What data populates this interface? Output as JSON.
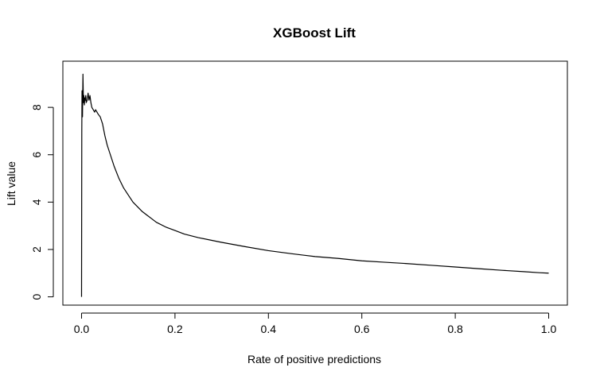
{
  "chart_data": {
    "type": "line",
    "title": "XGBoost Lift",
    "xlabel": "Rate of positive predictions",
    "ylabel": "Lift value",
    "xlim": [
      -0.04,
      1.04
    ],
    "ylim": [
      -0.35,
      9.95
    ],
    "x_ticks": [
      0.0,
      0.2,
      0.4,
      0.6,
      0.8,
      1.0
    ],
    "x_tick_labels": [
      "0.0",
      "0.2",
      "0.4",
      "0.6",
      "0.8",
      "1.0"
    ],
    "y_ticks": [
      0,
      2,
      4,
      6,
      8
    ],
    "y_tick_labels": [
      "0",
      "2",
      "4",
      "6",
      "8"
    ],
    "grid": false,
    "legend": "none",
    "line_color": "#000000",
    "series": [
      {
        "x": [
          0.0,
          0.0005,
          0.001,
          0.0015,
          0.002,
          0.003,
          0.004,
          0.005,
          0.006,
          0.007,
          0.008,
          0.009,
          0.01,
          0.012,
          0.014,
          0.016,
          0.018,
          0.02,
          0.022,
          0.025,
          0.028,
          0.03,
          0.033,
          0.036,
          0.04,
          0.045,
          0.05,
          0.055,
          0.06,
          0.07,
          0.08,
          0.09,
          0.1,
          0.11,
          0.12,
          0.13,
          0.14,
          0.15,
          0.16,
          0.18,
          0.2,
          0.22,
          0.25,
          0.28,
          0.3,
          0.35,
          0.4,
          0.45,
          0.5,
          0.55,
          0.6,
          0.65,
          0.7,
          0.75,
          0.8,
          0.85,
          0.9,
          0.95,
          0.98,
          1.0
        ],
        "y": [
          0.0,
          6.9,
          8.7,
          8.3,
          7.6,
          9.4,
          8.2,
          8.5,
          8.1,
          8.4,
          8.3,
          8.5,
          8.2,
          8.3,
          8.6,
          8.3,
          8.5,
          8.2,
          8.0,
          7.9,
          7.8,
          7.9,
          7.8,
          7.7,
          7.6,
          7.3,
          6.8,
          6.4,
          6.1,
          5.5,
          5.0,
          4.6,
          4.3,
          4.0,
          3.8,
          3.6,
          3.45,
          3.3,
          3.15,
          2.95,
          2.8,
          2.65,
          2.5,
          2.38,
          2.3,
          2.12,
          1.95,
          1.82,
          1.7,
          1.62,
          1.52,
          1.46,
          1.4,
          1.33,
          1.26,
          1.19,
          1.12,
          1.06,
          1.02,
          1.0
        ]
      }
    ]
  }
}
